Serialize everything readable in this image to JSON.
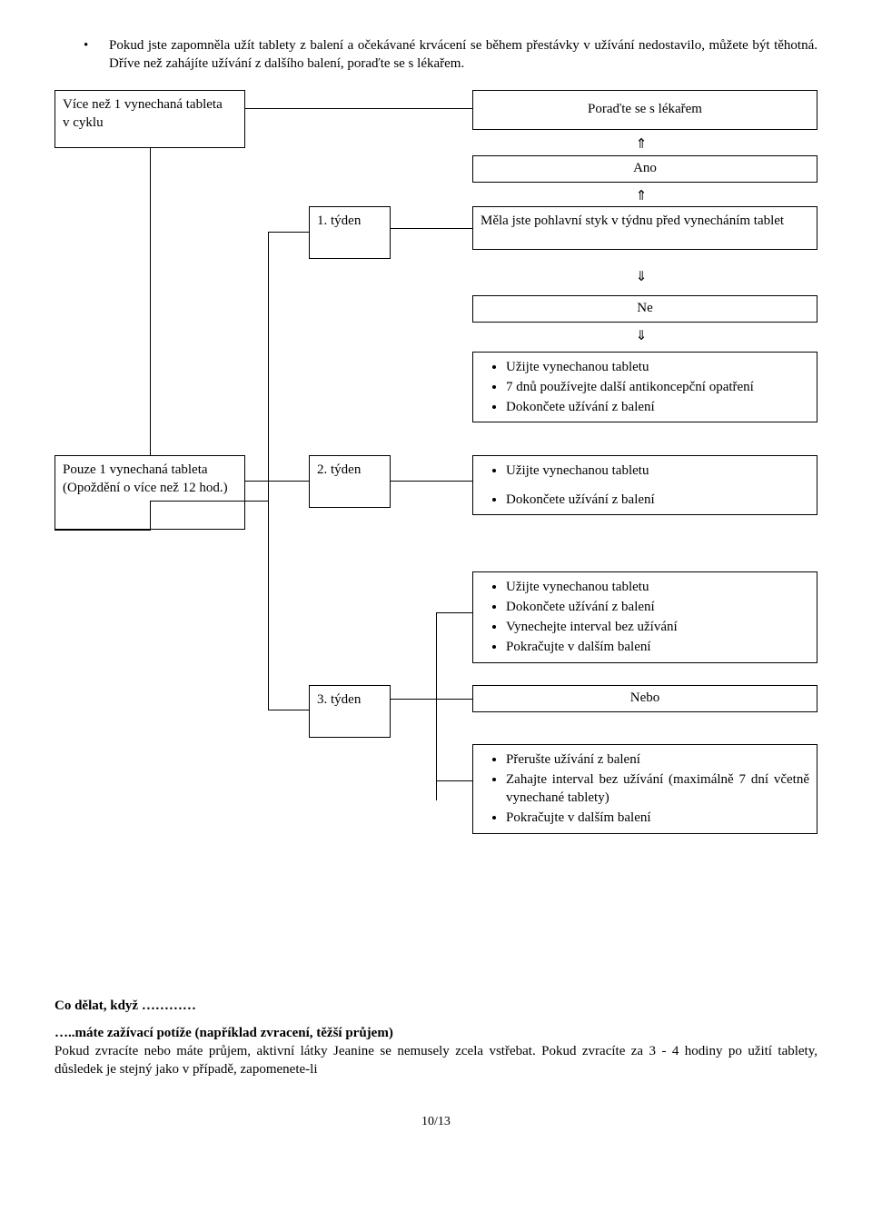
{
  "top_bullet": "Pokud jste zapomněla užít tablety z balení a očekávané krvácení se během přestávky v užívání nedostavilo, můžete být těhotná. Dříve než zahájíte užívání z dalšího balení, poraďte se s lékařem.",
  "boxes": {
    "more_than_one": "Více než 1 vynechaná tableta\nv cyklu",
    "consult": "Poraďte se s lékařem",
    "ano": "Ano",
    "week1": "1. týden",
    "question": "Měla jste pohlavní styk v týdnu před vynecháním tablet",
    "ne": "Ne",
    "only_one": "Pouze 1 vynechaná tableta\n(Opoždění o více než 12 hod.)",
    "week2": "2. týden",
    "week3": "3. týden",
    "nebo": "Nebo"
  },
  "arrows": {
    "up": "⇑",
    "down": "⇓"
  },
  "lists": {
    "ne_block": [
      "Užijte vynechanou tabletu",
      "7 dnů používejte další antikoncepční opatření",
      "Dokončete užívání z balení"
    ],
    "week2_block": [
      "Užijte vynechanou tabletu",
      "Dokončete užívání z balení"
    ],
    "week3_block_a": [
      "Užijte vynechanou tabletu",
      "Dokončete užívání z balení",
      "Vynechejte interval bez užívání",
      "Pokračujte v dalším balení"
    ],
    "week3_block_b": [
      "Přerušte užívání z balení",
      "Zahajte interval bez užívání (maximálně 7 dní včetně vynechané tablety)",
      "Pokračujte v dalším balení"
    ]
  },
  "bottom": {
    "heading": "Co dělat, když …………",
    "subheading": "…..máte zažívací potíže (například zvracení, těžší průjem)",
    "paragraph": "Pokud zvracíte nebo máte průjem, aktivní látky Jeanine se nemusely zcela vstřebat. Pokud zvracíte za 3 - 4 hodiny po užití tablety, důsledek je stejný jako v případě, zapomenete-li"
  },
  "footer": "10/13"
}
